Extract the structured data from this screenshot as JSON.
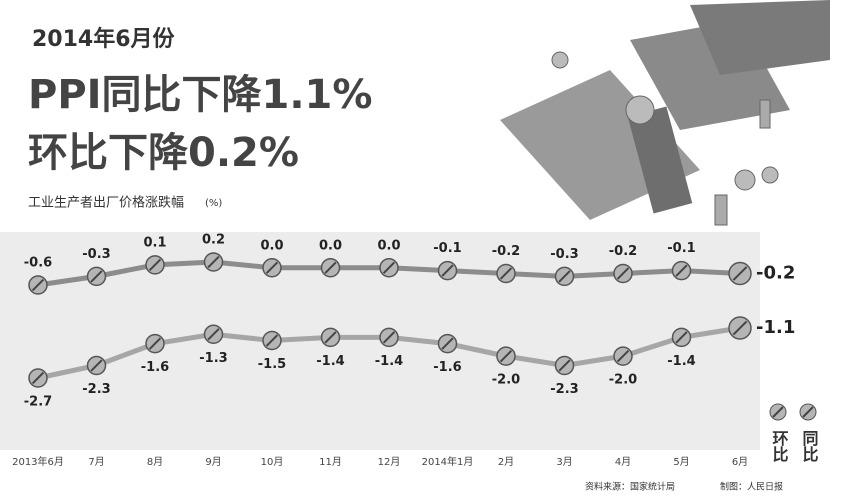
{
  "chart_data": {
    "type": "line",
    "date_label": "2014年6月份",
    "title": "PPI同比下降1.1%",
    "subtitle": "环比下降0.2%",
    "axis_label": "工业生产者出厂价格涨跌幅",
    "unit": "(%)",
    "categories": [
      "2013年6月",
      "7月",
      "8月",
      "9月",
      "10月",
      "11月",
      "12月",
      "2014年1月",
      "2月",
      "3月",
      "4月",
      "5月",
      "6月"
    ],
    "series": [
      {
        "name": "环比",
        "color": "#8c8c8c",
        "values": [
          -0.6,
          -0.3,
          0.1,
          0.2,
          0.0,
          0.0,
          0.0,
          -0.1,
          -0.2,
          -0.3,
          -0.2,
          -0.1,
          -0.2
        ],
        "value_labels": [
          "-0.6",
          "-0.3",
          "0.1",
          "0.2",
          "0.0",
          "0.0",
          "0.0",
          "-0.1",
          "-0.2",
          "-0.3",
          "-0.2",
          "-0.1",
          "-0.2"
        ]
      },
      {
        "name": "同比",
        "color": "#a6a6a6",
        "values": [
          -2.7,
          -2.3,
          -1.6,
          -1.3,
          -1.5,
          -1.4,
          -1.4,
          -1.6,
          -2.0,
          -2.3,
          -2.0,
          -1.4,
          -1.1
        ],
        "value_labels": [
          "-2.7",
          "-2.3",
          "-1.6",
          "-1.3",
          "-1.5",
          "-1.4",
          "-1.4",
          "-1.6",
          "-2.0",
          "-2.3",
          "-2.0",
          "-1.4",
          "-1.1"
        ]
      }
    ],
    "source": "资料来源：国家统计局",
    "credit": "制图：人民日报"
  }
}
